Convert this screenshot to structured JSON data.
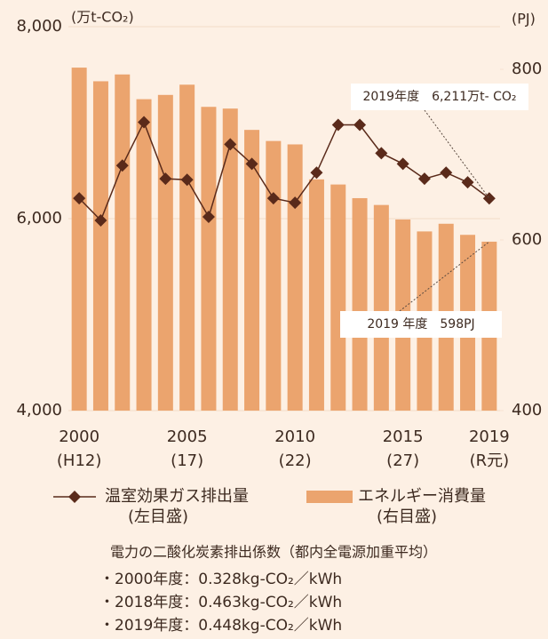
{
  "chart_data": {
    "type": "bar-line",
    "y_unit_label": "(万t-CO₂)",
    "y2_unit_label": "(PJ)",
    "categories": [
      "2000",
      null,
      null,
      null,
      null,
      "2005",
      null,
      null,
      null,
      null,
      "2010",
      null,
      null,
      null,
      null,
      "2015",
      null,
      null,
      null,
      "2019"
    ],
    "category_sublabels": [
      "(H12)",
      null,
      null,
      null,
      null,
      "(17)",
      null,
      null,
      null,
      null,
      "(22)",
      null,
      null,
      null,
      null,
      "(27)",
      null,
      null,
      null,
      "(R元)"
    ],
    "ylim": [
      4000,
      8000
    ],
    "yticks": [
      {
        "value": 4000,
        "label": "4,000"
      },
      {
        "value": 6000,
        "label": "6,000"
      },
      {
        "value": 8000,
        "label": "8,000"
      }
    ],
    "y2lim": [
      400,
      850
    ],
    "y2ticks": [
      400,
      600,
      800
    ],
    "grid": true,
    "series": [
      {
        "name": "温室効果ガス排出量",
        "note": "(左目盛)",
        "type": "line",
        "color": "#5a2a1a",
        "values": [
          6212,
          5982,
          6553,
          7005,
          6415,
          6405,
          6018,
          6774,
          6571,
          6212,
          6166,
          6479,
          6977,
          6977,
          6682,
          6571,
          6415,
          6479,
          6378,
          6211
        ]
      },
      {
        "name": "エネルギー消費量",
        "note": "(右目盛)",
        "type": "bar",
        "axis": "y2",
        "color": "#eba46e",
        "values": [
          802,
          786,
          794,
          765,
          770,
          782,
          756,
          754,
          729,
          716,
          712,
          671,
          665,
          649,
          641,
          624,
          610,
          619,
          606,
          598
        ]
      }
    ],
    "annotations": [
      {
        "text": "2019年度　6,211万t- CO₂",
        "series": 0,
        "index": 19
      },
      {
        "text": "2019 年度　598PJ",
        "series": 1,
        "index": 19
      }
    ]
  },
  "footnote": {
    "title": "電力の二酸化炭素排出係数（都内全電源加重平均）",
    "lines": [
      "・2000年度：0.328kg-CO₂／kWh",
      "・2018年度：0.463kg-CO₂／kWh",
      "・2019年度：0.448kg-CO₂／kWh"
    ]
  }
}
